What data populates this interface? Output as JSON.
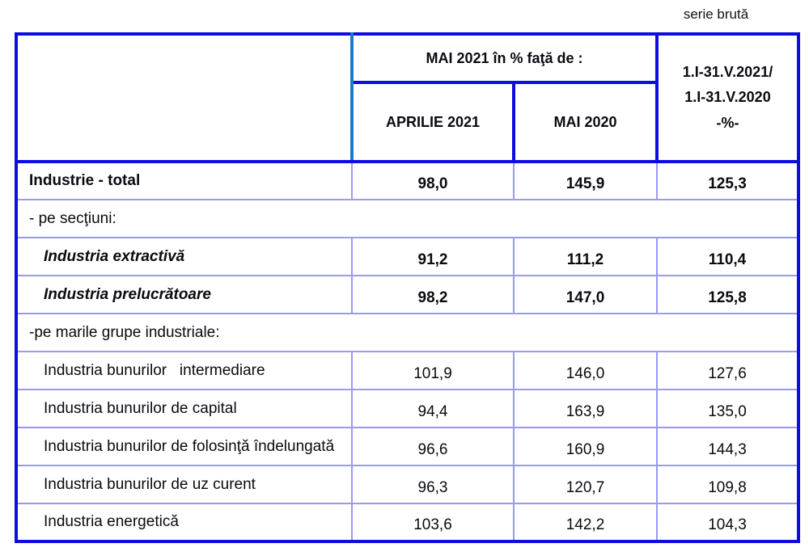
{
  "note": "serie brută",
  "table": {
    "header": {
      "group_title": "MAI 2021 în % faţă de :",
      "col_april": "APRILIE 2021",
      "col_mai": "MAI 2020",
      "col_cumulative_line1": "1.I-31.V.2021/",
      "col_cumulative_line2": "1.I-31.V.2020",
      "col_cumulative_line3": "-%-"
    },
    "rows": [
      {
        "label": "Industrie - total",
        "values": [
          "98,0",
          "145,9",
          "125,3"
        ]
      },
      {
        "label": "- pe secţiuni:"
      },
      {
        "label": "Industria extractivă",
        "values": [
          "91,2",
          "111,2",
          "110,4"
        ]
      },
      {
        "label": "Industria prelucrătoare",
        "values": [
          "98,2",
          "147,0",
          "125,8"
        ]
      },
      {
        "label": "-pe marile grupe industriale:"
      },
      {
        "label": "Industria bunurilor   intermediare",
        "values": [
          "101,9",
          "146,0",
          "127,6"
        ]
      },
      {
        "label": "Industria bunurilor de capital",
        "values": [
          "94,4",
          "163,9",
          "135,0"
        ]
      },
      {
        "label": "Industria bunurilor de folosinţă îndelungată",
        "values": [
          "96,6",
          "160,9",
          "144,3"
        ]
      },
      {
        "label": "Industria bunurilor de uz curent",
        "values": [
          "96,3",
          "120,7",
          "109,8"
        ]
      },
      {
        "label": "Industria energetică",
        "values": [
          "103,6",
          "142,2",
          "104,3"
        ]
      }
    ]
  },
  "colors": {
    "border_strong": "#0d0de0",
    "border_light": "#9a9af0",
    "header_divider": "#1b7ac8"
  }
}
